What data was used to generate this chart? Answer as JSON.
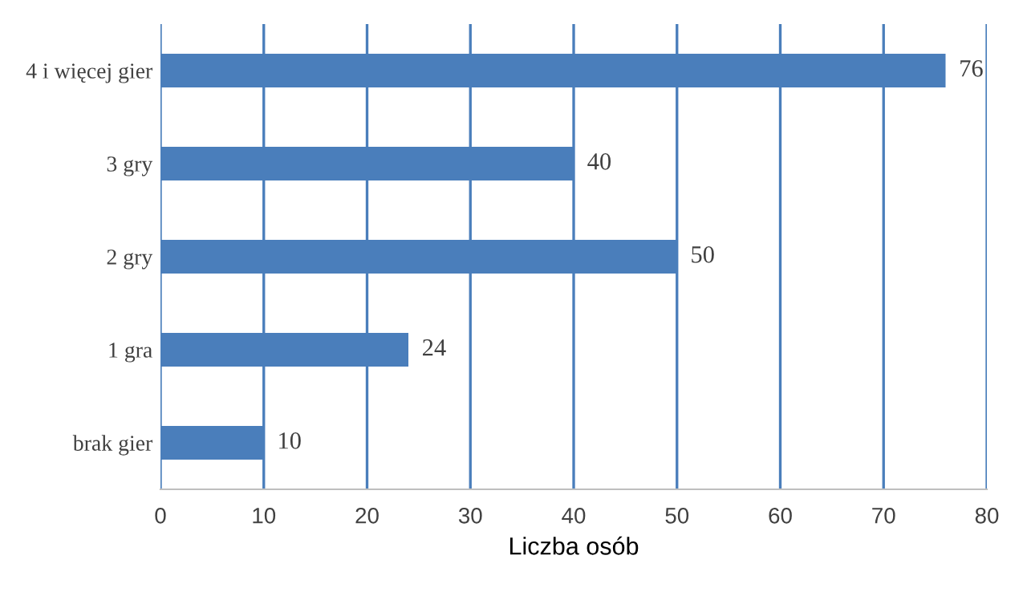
{
  "chart_data": {
    "type": "bar",
    "orientation": "horizontal",
    "xlabel": "Liczba osób",
    "categories": [
      "4 i więcej gier",
      "3 gry",
      "2 gry",
      "1 gra",
      "brak gier"
    ],
    "values": [
      76,
      40,
      50,
      24,
      10
    ],
    "color": "#4a7ebb",
    "xlim": [
      0,
      80
    ],
    "xticks": [
      0,
      10,
      20,
      30,
      40,
      50,
      60,
      70,
      80
    ],
    "grid": "x",
    "data_labels": true,
    "legend": false
  }
}
